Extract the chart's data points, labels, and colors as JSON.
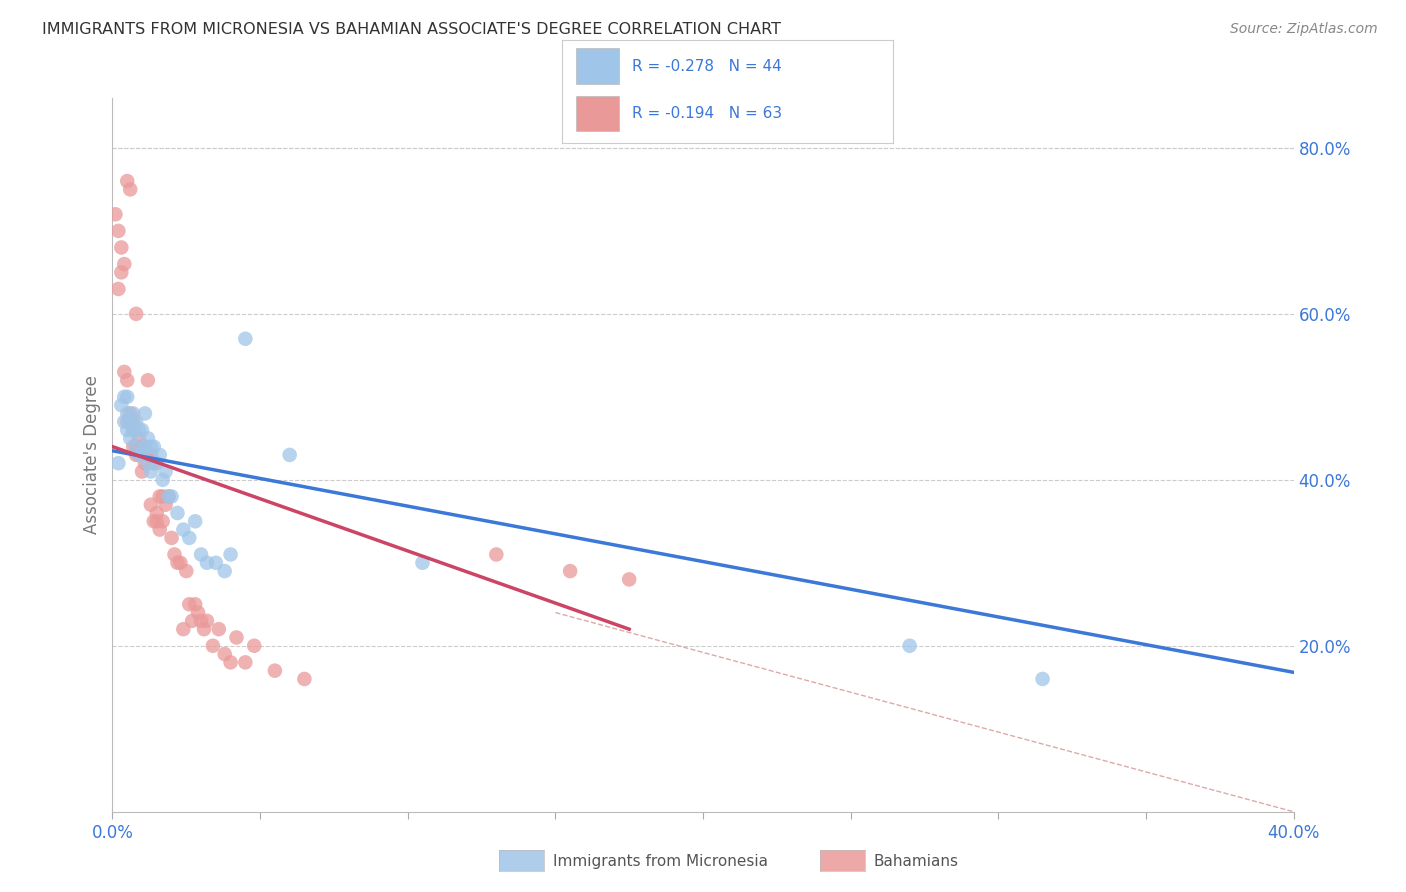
{
  "title": "IMMIGRANTS FROM MICRONESIA VS BAHAMIAN ASSOCIATE'S DEGREE CORRELATION CHART",
  "source": "Source: ZipAtlas.com",
  "ylabel": "Associate's Degree",
  "xlim": [
    0.0,
    0.4
  ],
  "ylim": [
    0.0,
    0.86
  ],
  "legend_blue_label": "Immigrants from Micronesia",
  "legend_pink_label": "Bahamians",
  "R_blue": -0.278,
  "N_blue": 44,
  "R_pink": -0.194,
  "N_pink": 63,
  "blue_color": "#9fc5e8",
  "pink_color": "#ea9999",
  "blue_line_color": "#3c78d8",
  "pink_line_color": "#cc4466",
  "dashed_line_color": "#ddaaaa",
  "background_color": "#ffffff",
  "grid_color": "#cccccc",
  "title_color": "#333333",
  "axis_label_color": "#3c78d8",
  "right_ytick_values": [
    0.2,
    0.4,
    0.6,
    0.8
  ],
  "right_ytick_labels": [
    "20.0%",
    "40.0%",
    "60.0%",
    "80.0%"
  ],
  "blue_line_x0": 0.0,
  "blue_line_y0": 0.435,
  "blue_line_x1": 0.4,
  "blue_line_y1": 0.168,
  "pink_line_x0": 0.0,
  "pink_line_x1": 0.175,
  "pink_line_y0": 0.44,
  "pink_line_y1": 0.22,
  "dash_line_x0": 0.15,
  "dash_line_y0": 0.24,
  "dash_line_x1": 0.4,
  "dash_line_y1": 0.0,
  "blue_scatter_x": [
    0.002,
    0.003,
    0.004,
    0.004,
    0.005,
    0.005,
    0.005,
    0.006,
    0.006,
    0.007,
    0.007,
    0.008,
    0.008,
    0.009,
    0.009,
    0.01,
    0.01,
    0.011,
    0.011,
    0.012,
    0.012,
    0.013,
    0.013,
    0.014,
    0.015,
    0.016,
    0.017,
    0.018,
    0.019,
    0.02,
    0.022,
    0.024,
    0.026,
    0.028,
    0.03,
    0.032,
    0.035,
    0.038,
    0.04,
    0.045,
    0.06,
    0.105,
    0.27,
    0.315
  ],
  "blue_scatter_y": [
    0.42,
    0.49,
    0.47,
    0.5,
    0.48,
    0.46,
    0.5,
    0.47,
    0.45,
    0.48,
    0.46,
    0.44,
    0.47,
    0.43,
    0.46,
    0.43,
    0.46,
    0.44,
    0.48,
    0.42,
    0.45,
    0.44,
    0.41,
    0.44,
    0.42,
    0.43,
    0.4,
    0.41,
    0.38,
    0.38,
    0.36,
    0.34,
    0.33,
    0.35,
    0.31,
    0.3,
    0.3,
    0.29,
    0.31,
    0.57,
    0.43,
    0.3,
    0.2,
    0.16
  ],
  "pink_scatter_x": [
    0.001,
    0.002,
    0.002,
    0.003,
    0.003,
    0.004,
    0.004,
    0.005,
    0.005,
    0.005,
    0.006,
    0.006,
    0.007,
    0.007,
    0.007,
    0.008,
    0.008,
    0.008,
    0.009,
    0.009,
    0.01,
    0.01,
    0.011,
    0.011,
    0.012,
    0.012,
    0.013,
    0.013,
    0.014,
    0.014,
    0.015,
    0.015,
    0.016,
    0.016,
    0.017,
    0.017,
    0.018,
    0.019,
    0.02,
    0.021,
    0.022,
    0.023,
    0.024,
    0.025,
    0.026,
    0.027,
    0.028,
    0.029,
    0.03,
    0.031,
    0.032,
    0.034,
    0.036,
    0.038,
    0.04,
    0.042,
    0.045,
    0.048,
    0.055,
    0.065,
    0.13,
    0.155,
    0.175
  ],
  "pink_scatter_y": [
    0.72,
    0.7,
    0.63,
    0.65,
    0.68,
    0.53,
    0.66,
    0.47,
    0.76,
    0.52,
    0.75,
    0.48,
    0.46,
    0.44,
    0.47,
    0.44,
    0.43,
    0.6,
    0.45,
    0.43,
    0.44,
    0.41,
    0.44,
    0.42,
    0.43,
    0.52,
    0.37,
    0.43,
    0.35,
    0.42,
    0.36,
    0.35,
    0.34,
    0.38,
    0.35,
    0.38,
    0.37,
    0.38,
    0.33,
    0.31,
    0.3,
    0.3,
    0.22,
    0.29,
    0.25,
    0.23,
    0.25,
    0.24,
    0.23,
    0.22,
    0.23,
    0.2,
    0.22,
    0.19,
    0.18,
    0.21,
    0.18,
    0.2,
    0.17,
    0.16,
    0.31,
    0.29,
    0.28
  ]
}
